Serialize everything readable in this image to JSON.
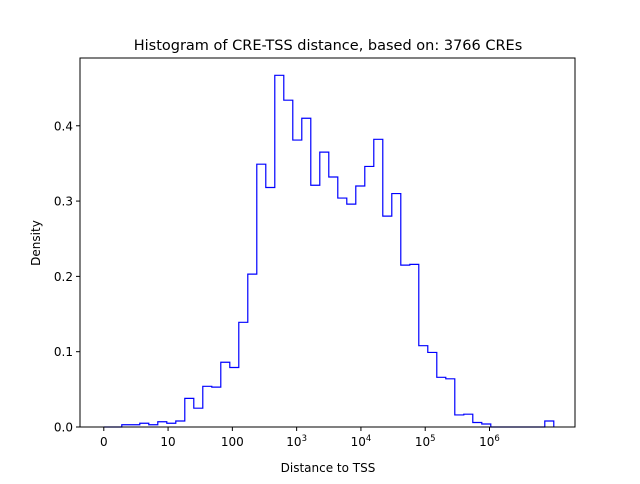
{
  "chart_data": {
    "type": "histogram",
    "title": "Histogram of CRE-TSS distance, based on: 3766 CREs",
    "xlabel": "Distance to TSS",
    "ylabel": "Density",
    "x_scale": "log10(distance+1)",
    "xlim": [
      -0.37,
      7.33
    ],
    "ylim": [
      0,
      0.49
    ],
    "grid": false,
    "line_color": "#0000ff",
    "bin_start": 0,
    "bin_width": 0.14,
    "values": [
      0,
      0,
      0.003,
      0.003,
      0.005,
      0.003,
      0.007,
      0.005,
      0.008,
      0.038,
      0.025,
      0.054,
      0.053,
      0.086,
      0.079,
      0.139,
      0.203,
      0.349,
      0.318,
      0.467,
      0.434,
      0.381,
      0.41,
      0.321,
      0.365,
      0.332,
      0.304,
      0.296,
      0.32,
      0.346,
      0.382,
      0.28,
      0.31,
      0.215,
      0.216,
      0.108,
      0.099,
      0.066,
      0.064,
      0.016,
      0.017,
      0.006,
      0.004,
      0,
      0,
      0,
      0,
      0,
      0,
      0.008
    ],
    "xticks": [
      {
        "value": 0,
        "label": "0"
      },
      {
        "value": 1,
        "label": "10"
      },
      {
        "value": 2,
        "label": "100"
      },
      {
        "value": 3,
        "label": "10",
        "sup": "3"
      },
      {
        "value": 4,
        "label": "10",
        "sup": "4"
      },
      {
        "value": 5,
        "label": "10",
        "sup": "5"
      },
      {
        "value": 6,
        "label": "10",
        "sup": "6"
      }
    ],
    "yticks": [
      {
        "value": 0,
        "label": "0.0"
      },
      {
        "value": 0.1,
        "label": "0.1"
      },
      {
        "value": 0.2,
        "label": "0.2"
      },
      {
        "value": 0.3,
        "label": "0.3"
      },
      {
        "value": 0.4,
        "label": "0.4"
      }
    ]
  }
}
